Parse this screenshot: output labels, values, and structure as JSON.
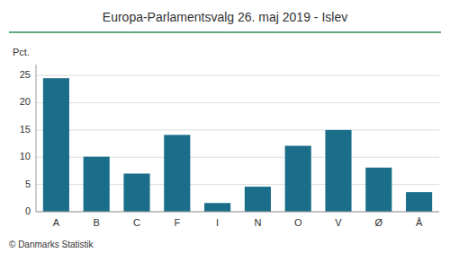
{
  "chart_data": {
    "type": "bar",
    "title": "Europa-Parlamentsvalg 26. maj 2019 - Islev",
    "ylabel": "Pct.",
    "footer": "© Danmarks Statistik",
    "categories": [
      "A",
      "B",
      "C",
      "F",
      "I",
      "N",
      "O",
      "V",
      "Ø",
      "Å"
    ],
    "values": [
      24.5,
      10.1,
      7.0,
      14.1,
      1.6,
      4.6,
      12.1,
      15.0,
      8.1,
      3.6
    ],
    "color": "#1a6e8a",
    "ylim": [
      0,
      27
    ],
    "yticks": [
      0,
      5,
      10,
      15,
      20,
      25
    ],
    "grid": true
  }
}
